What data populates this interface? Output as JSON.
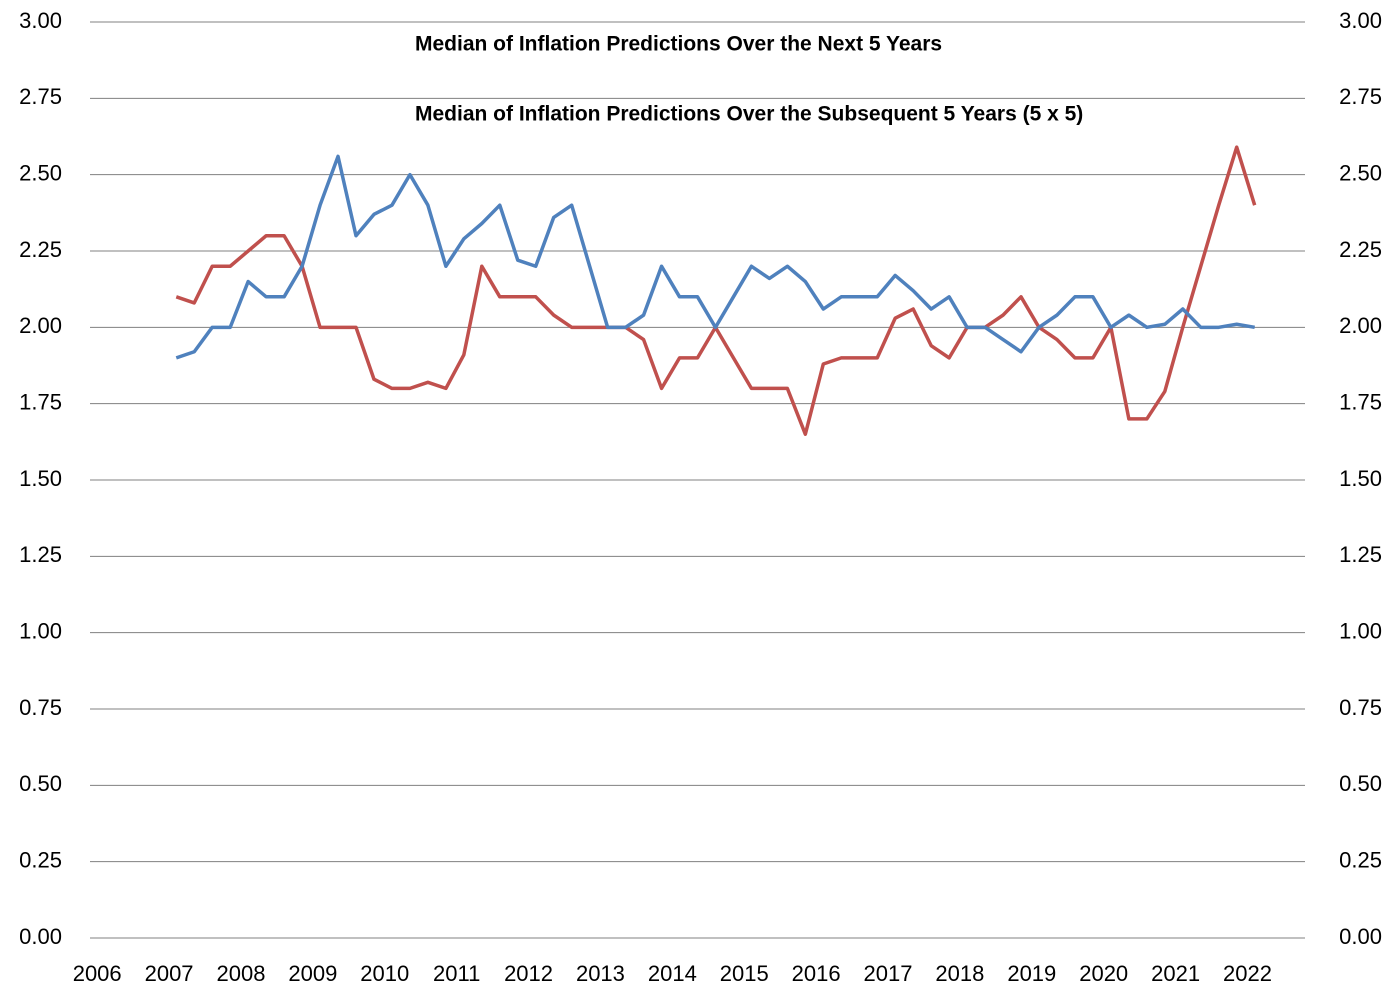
{
  "chart_data": {
    "type": "line",
    "annotations": [
      {
        "text": "Median of Inflation Predictions Over the Next 5 Years",
        "color": "#c00000"
      },
      {
        "text": "Median of Inflation Predictions Over the Subsequent 5 Years (5 x 5)",
        "color": "#4f81bd"
      }
    ],
    "x": [
      2007.1,
      2007.35,
      2007.6,
      2007.85,
      2008.1,
      2008.35,
      2008.6,
      2008.85,
      2009.1,
      2009.35,
      2009.6,
      2009.85,
      2010.1,
      2010.35,
      2010.6,
      2010.85,
      2011.1,
      2011.35,
      2011.6,
      2011.85,
      2012.1,
      2012.35,
      2012.6,
      2012.85,
      2013.1,
      2013.35,
      2013.6,
      2013.85,
      2014.1,
      2014.35,
      2014.6,
      2014.85,
      2015.1,
      2015.35,
      2015.6,
      2015.85,
      2016.1,
      2016.35,
      2016.6,
      2016.85,
      2017.1,
      2017.35,
      2017.6,
      2017.85,
      2018.1,
      2018.35,
      2018.6,
      2018.85,
      2019.1,
      2019.35,
      2019.6,
      2019.85,
      2020.1,
      2020.35,
      2020.6,
      2020.85,
      2021.1,
      2021.35,
      2021.6,
      2021.85,
      2022.1
    ],
    "series": [
      {
        "color": "#c0504d",
        "values": [
          2.1,
          2.08,
          2.2,
          2.2,
          2.25,
          2.3,
          2.3,
          2.2,
          2.0,
          2.0,
          2.0,
          1.83,
          1.8,
          1.8,
          1.82,
          1.8,
          1.91,
          2.2,
          2.1,
          2.1,
          2.1,
          2.04,
          2.0,
          2.0,
          2.0,
          2.0,
          1.96,
          1.8,
          1.9,
          1.9,
          2.0,
          1.9,
          1.8,
          1.8,
          1.8,
          1.65,
          1.88,
          1.9,
          1.9,
          1.9,
          2.03,
          2.06,
          1.94,
          1.9,
          2.0,
          2.0,
          2.04,
          2.1,
          2.0,
          1.96,
          1.9,
          1.9,
          2.0,
          1.7,
          1.7,
          1.79,
          2.0,
          2.2,
          2.4,
          2.59,
          2.4
        ]
      },
      {
        "color": "#4f81bd",
        "values": [
          1.9,
          1.92,
          2.0,
          2.0,
          2.15,
          2.1,
          2.1,
          2.2,
          2.4,
          2.56,
          2.3,
          2.37,
          2.4,
          2.5,
          2.4,
          2.2,
          2.29,
          2.34,
          2.4,
          2.22,
          2.2,
          2.36,
          2.4,
          2.2,
          2.0,
          2.0,
          2.04,
          2.2,
          2.1,
          2.1,
          2.0,
          2.1,
          2.2,
          2.16,
          2.2,
          2.15,
          2.06,
          2.1,
          2.1,
          2.1,
          2.17,
          2.12,
          2.06,
          2.1,
          2.0,
          2.0,
          1.96,
          1.92,
          2.0,
          2.04,
          2.1,
          2.1,
          2.0,
          2.04,
          2.0,
          2.01,
          2.06,
          2.0,
          2.0,
          2.01,
          2.0
        ]
      }
    ],
    "xlim": [
      2005.9,
      2022.8
    ],
    "xticks": [
      2006,
      2007,
      2008,
      2009,
      2010,
      2011,
      2012,
      2013,
      2014,
      2015,
      2016,
      2017,
      2018,
      2019,
      2020,
      2021,
      2022
    ],
    "ylim": [
      0,
      3
    ],
    "yticks": [
      {
        "value": 0,
        "label": "0.00"
      },
      {
        "value": 0.25,
        "label": "0.25"
      },
      {
        "value": 0.5,
        "label": "0.50"
      },
      {
        "value": 0.75,
        "label": "0.75"
      },
      {
        "value": 1,
        "label": "1.00"
      },
      {
        "value": 1.25,
        "label": "1.25"
      },
      {
        "value": 1.5,
        "label": "1.50"
      },
      {
        "value": 1.75,
        "label": "1.75"
      },
      {
        "value": 2,
        "label": "2.00"
      },
      {
        "value": 2.25,
        "label": "2.25"
      },
      {
        "value": 2.5,
        "label": "2.50"
      },
      {
        "value": 2.75,
        "label": "2.75"
      },
      {
        "value": 3,
        "label": "3.00"
      }
    ],
    "y2lim": [
      0,
      3
    ],
    "y2ticks": [
      {
        "value": 0,
        "label": "0.00"
      },
      {
        "value": 0.25,
        "label": "0.25"
      },
      {
        "value": 0.5,
        "label": "0.50"
      },
      {
        "value": 0.75,
        "label": "0.75"
      },
      {
        "value": 1,
        "label": "1.00"
      },
      {
        "value": 1.25,
        "label": "1.25"
      },
      {
        "value": 1.5,
        "label": "1.50"
      },
      {
        "value": 1.75,
        "label": "1.75"
      },
      {
        "value": 2,
        "label": "2.00"
      },
      {
        "value": 2.25,
        "label": "2.25"
      },
      {
        "value": 2.5,
        "label": "2.50"
      },
      {
        "value": 2.75,
        "label": "2.75"
      },
      {
        "value": 3,
        "label": "3.00"
      }
    ],
    "grid": true
  }
}
